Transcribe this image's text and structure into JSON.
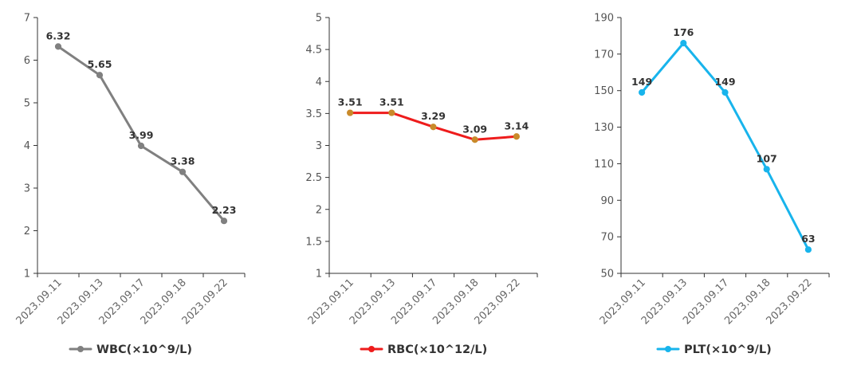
{
  "chart_data": [
    {
      "type": "line",
      "categories": [
        "2023.09.11",
        "2023.09.13",
        "2023.09.17",
        "2023.09.18",
        "2023.09.22"
      ],
      "series": [
        {
          "name": "WBC(×10^9/L)",
          "values": [
            6.32,
            5.65,
            3.99,
            3.38,
            2.23
          ],
          "color": "#808080"
        }
      ],
      "data_labels": [
        "6.32",
        "5.65",
        "3.99",
        "3.38",
        "2.23"
      ],
      "ylim": [
        1,
        7
      ],
      "yticks": [
        "1",
        "2",
        "3",
        "4",
        "5",
        "6",
        "7"
      ],
      "legend_position": "bottom",
      "grid": false
    },
    {
      "type": "line",
      "categories": [
        "2023.09.11",
        "2023.09.13",
        "2023.09.17",
        "2023.09.18",
        "2023.09.22"
      ],
      "series": [
        {
          "name": "RBC(×10^12/L)",
          "values": [
            3.51,
            3.51,
            3.29,
            3.09,
            3.14
          ],
          "color": "#ee1c1c",
          "marker_color": "#c98a2a"
        }
      ],
      "data_labels": [
        "3.51",
        "3.51",
        "3.29",
        "3.09",
        "3.14"
      ],
      "ylim": [
        1,
        5
      ],
      "yticks": [
        "1",
        "1.5",
        "2",
        "2.5",
        "3",
        "3.5",
        "4",
        "4.5",
        "5"
      ],
      "legend_position": "bottom",
      "grid": false
    },
    {
      "type": "line",
      "categories": [
        "2023.09.11",
        "2023.09.13",
        "2023.09.17",
        "2023.09.18",
        "2023.09.22"
      ],
      "series": [
        {
          "name": "PLT(×10^9/L)",
          "values": [
            149,
            176,
            149,
            107,
            63
          ],
          "color": "#18b4ec"
        }
      ],
      "data_labels": [
        "149",
        "176",
        "149",
        "107",
        "63"
      ],
      "ylim": [
        50,
        190
      ],
      "yticks": [
        "50",
        "70",
        "90",
        "110",
        "130",
        "150",
        "170",
        "190"
      ],
      "legend_position": "bottom",
      "grid": false
    }
  ]
}
